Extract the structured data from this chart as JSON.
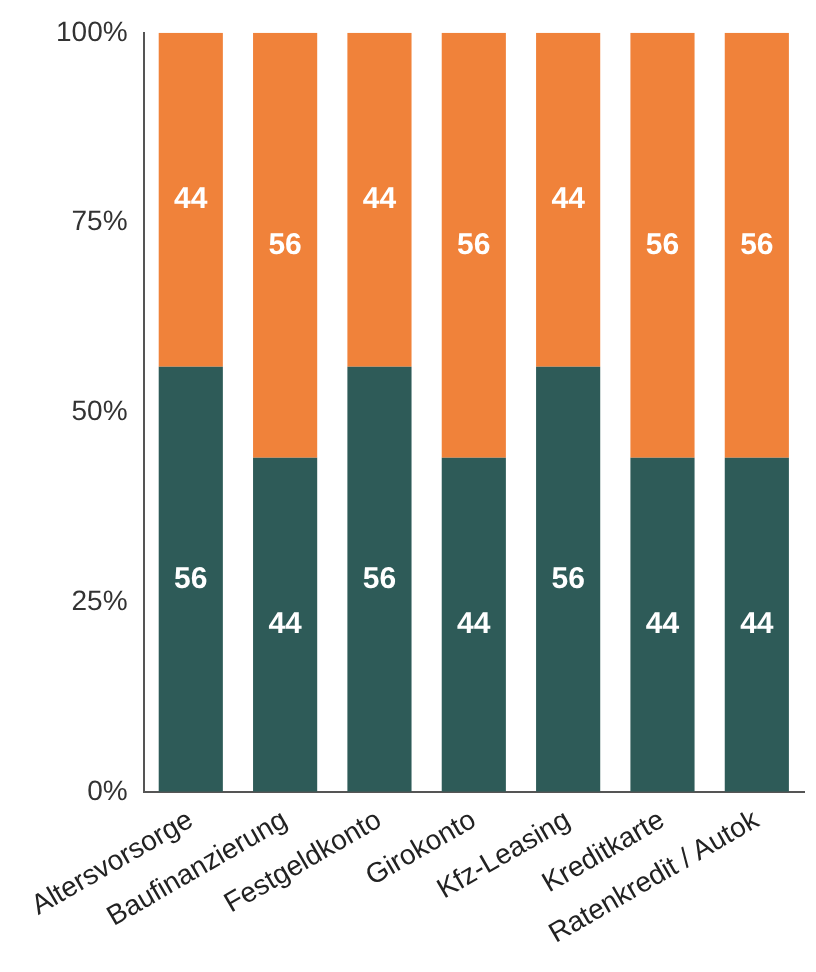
{
  "chart_data": {
    "type": "bar",
    "stacked": true,
    "data_labels": true,
    "grid": false,
    "legend": false,
    "categories": [
      "Altersvorsorge",
      "Baufinanzierung",
      "Festgeldkonto",
      "Girokonto",
      "Kfz-Leasing",
      "Kreditkarte",
      "Ratenkredit / Autok"
    ],
    "series": [
      {
        "color": "#2e5b58",
        "values": [
          56,
          44,
          56,
          44,
          56,
          44,
          44
        ]
      },
      {
        "color": "#f0823a",
        "values": [
          44,
          56,
          44,
          56,
          44,
          56,
          56
        ]
      }
    ],
    "ylim": [
      0,
      100
    ],
    "yticks": [
      {
        "value": 0,
        "label": "0%"
      },
      {
        "value": 25,
        "label": "25%"
      },
      {
        "value": 50,
        "label": "50%"
      },
      {
        "value": 75,
        "label": "75%"
      },
      {
        "value": 100,
        "label": "100%"
      }
    ]
  }
}
